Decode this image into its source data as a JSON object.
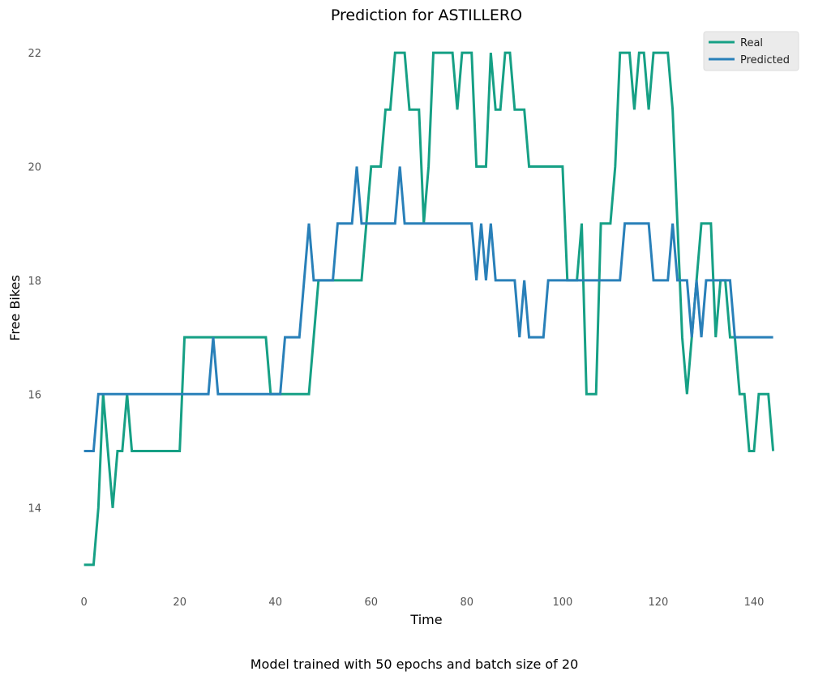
{
  "chart_data": {
    "type": "line",
    "title": "Prediction for ASTILLERO",
    "xlabel": "Time",
    "ylabel": "Free Bikes",
    "caption": "Model trained with 50 epochs and batch size of 20",
    "xlim": [
      -2,
      145
    ],
    "ylim": [
      12.5,
      22.5
    ],
    "x_ticks": [
      0,
      20,
      40,
      60,
      80,
      100,
      120,
      140
    ],
    "y_ticks": [
      14,
      16,
      18,
      20,
      22
    ],
    "grid": false,
    "legend_position": "top-right",
    "series": [
      {
        "name": "Real",
        "color": "#16a085",
        "values": [
          13,
          13,
          13,
          14,
          16,
          15,
          14,
          15,
          15,
          16,
          15,
          15,
          15,
          15,
          15,
          15,
          15,
          15,
          15,
          15,
          15,
          17,
          17,
          17,
          17,
          17,
          17,
          17,
          17,
          17,
          17,
          17,
          17,
          17,
          17,
          17,
          17,
          17,
          17,
          16,
          16,
          16,
          16,
          16,
          16,
          16,
          16,
          16,
          17,
          18,
          18,
          18,
          18,
          18,
          18,
          18,
          18,
          18,
          18,
          19,
          20,
          20,
          20,
          21,
          21,
          22,
          22,
          22,
          21,
          21,
          21,
          19,
          20,
          22,
          22,
          22,
          22,
          22,
          21,
          22,
          22,
          22,
          20,
          20,
          20,
          22,
          21,
          21,
          22,
          22,
          21,
          21,
          21,
          20,
          20,
          20,
          20,
          20,
          20,
          20,
          20,
          18,
          18,
          18,
          19,
          16,
          16,
          16,
          19,
          19,
          19,
          20,
          22,
          22,
          22,
          21,
          22,
          22,
          21,
          22,
          22,
          22,
          22,
          21,
          19,
          17,
          16,
          17,
          18,
          19,
          19,
          19,
          17,
          18,
          18,
          17,
          17,
          16,
          16,
          15,
          15,
          16,
          16,
          16,
          15
        ]
      },
      {
        "name": "Predicted",
        "color": "#2980b9",
        "values": [
          15,
          15,
          15,
          16,
          16,
          16,
          16,
          16,
          16,
          16,
          16,
          16,
          16,
          16,
          16,
          16,
          16,
          16,
          16,
          16,
          16,
          16,
          16,
          16,
          16,
          16,
          16,
          17,
          16,
          16,
          16,
          16,
          16,
          16,
          16,
          16,
          16,
          16,
          16,
          16,
          16,
          16,
          17,
          17,
          17,
          17,
          18,
          19,
          18,
          18,
          18,
          18,
          18,
          19,
          19,
          19,
          19,
          20,
          19,
          19,
          19,
          19,
          19,
          19,
          19,
          19,
          20,
          19,
          19,
          19,
          19,
          19,
          19,
          19,
          19,
          19,
          19,
          19,
          19,
          19,
          19,
          19,
          18,
          19,
          18,
          19,
          18,
          18,
          18,
          18,
          18,
          17,
          18,
          17,
          17,
          17,
          17,
          18,
          18,
          18,
          18,
          18,
          18,
          18,
          18,
          18,
          18,
          18,
          18,
          18,
          18,
          18,
          18,
          19,
          19,
          19,
          19,
          19,
          19,
          18,
          18,
          18,
          18,
          19,
          18,
          18,
          18,
          17,
          18,
          17,
          18,
          18,
          18,
          18,
          18,
          18,
          17,
          17,
          17,
          17,
          17,
          17,
          17,
          17,
          17
        ]
      }
    ]
  }
}
